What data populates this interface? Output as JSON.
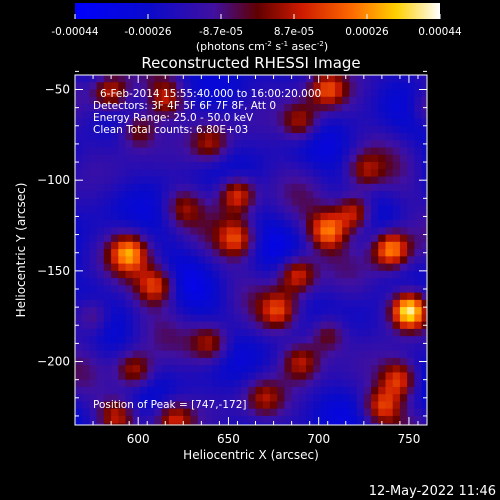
{
  "chart_data": {
    "type": "heatmap",
    "title": "Reconstructed RHESSI Image",
    "xlabel": "Heliocentric X (arcsec)",
    "ylabel": "Heliocentric Y (arcsec)",
    "xlim": [
      565,
      760
    ],
    "ylim": [
      -235,
      -42
    ],
    "xticks": [
      600,
      650,
      700,
      750
    ],
    "yticks": [
      -50,
      -100,
      -150,
      -200
    ],
    "colorbar": {
      "min": -0.00044,
      "max": 0.00044,
      "ticks": [
        "-0.00044",
        "-0.00026",
        "-8.7e-05",
        "8.7e-05",
        "0.00026",
        "0.00044"
      ],
      "unit_text": "(photons cm",
      "unit_sup1": "-2",
      "unit_mid": " s",
      "unit_sup2": "-1",
      "unit_end": " asec",
      "unit_sup3": "-2",
      "unit_close": ")"
    },
    "annotations": {
      "time": "6-Feb-2014 15:55:40.000 to 16:00:20.000",
      "detectors": "Detectors: 3F 4F 5F 6F 7F 8F, Att 0",
      "energy": "Energy Range: 25.0 - 50.0 keV",
      "clean": "Clean    Total counts: 6.80E+03",
      "peak": "Position of Peak = [747,-172]"
    },
    "peak": [
      747,
      -172
    ],
    "peaks": [
      {
        "x": 750,
        "y": -172,
        "v": 1.0
      },
      {
        "x": 740,
        "y": -138,
        "v": 0.75
      },
      {
        "x": 720,
        "y": -118,
        "v": 0.62
      },
      {
        "x": 705,
        "y": -128,
        "v": 0.6
      },
      {
        "x": 745,
        "y": -210,
        "v": 0.55
      },
      {
        "x": 735,
        "y": -225,
        "v": 0.5
      },
      {
        "x": 655,
        "y": -108,
        "v": 0.62
      },
      {
        "x": 655,
        "y": -132,
        "v": 0.5
      },
      {
        "x": 688,
        "y": -152,
        "v": 0.58
      },
      {
        "x": 678,
        "y": -172,
        "v": 0.45
      },
      {
        "x": 690,
        "y": -200,
        "v": 0.42
      },
      {
        "x": 705,
        "y": -185,
        "v": 0.4
      },
      {
        "x": 640,
        "y": -190,
        "v": 0.45
      },
      {
        "x": 610,
        "y": -158,
        "v": 0.55
      },
      {
        "x": 595,
        "y": -140,
        "v": 0.62
      },
      {
        "x": 598,
        "y": -205,
        "v": 0.5
      },
      {
        "x": 588,
        "y": -230,
        "v": 0.45
      },
      {
        "x": 620,
        "y": -232,
        "v": 0.45
      },
      {
        "x": 575,
        "y": -175,
        "v": 0.4
      },
      {
        "x": 585,
        "y": -52,
        "v": 0.55
      },
      {
        "x": 615,
        "y": -55,
        "v": 0.45
      },
      {
        "x": 600,
        "y": -72,
        "v": 0.42
      },
      {
        "x": 690,
        "y": -68,
        "v": 0.45
      },
      {
        "x": 705,
        "y": -50,
        "v": 0.5
      },
      {
        "x": 640,
        "y": -80,
        "v": 0.38
      },
      {
        "x": 760,
        "y": -60,
        "v": 0.3
      },
      {
        "x": 625,
        "y": -115,
        "v": 0.35
      },
      {
        "x": 670,
        "y": -220,
        "v": 0.35
      },
      {
        "x": 725,
        "y": -95,
        "v": 0.35
      }
    ]
  },
  "timestamp": "12-May-2022 11:46"
}
